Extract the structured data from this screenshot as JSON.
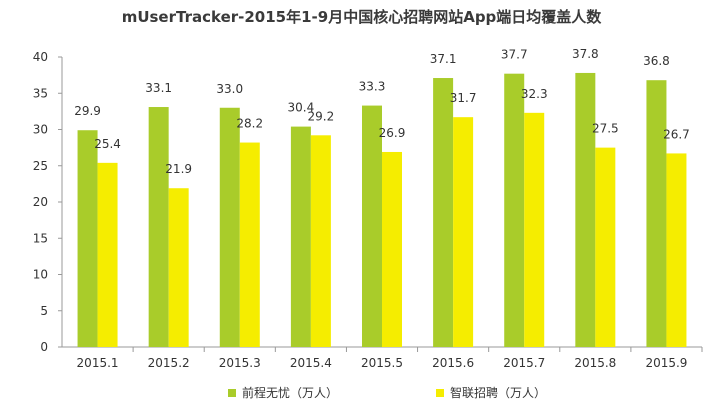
{
  "chart_data": {
    "type": "bar",
    "title": "mUserTracker-2015年1-9月中国核心招聘网站App端日均覆盖人数",
    "xlabel": "",
    "ylabel": "",
    "ylim": [
      0,
      40
    ],
    "yticks": [
      0,
      5,
      10,
      15,
      20,
      25,
      30,
      35,
      40
    ],
    "grid": false,
    "legend_position": "bottom",
    "categories": [
      "2015.1",
      "2015.2",
      "2015.3",
      "2015.4",
      "2015.5",
      "2015.6",
      "2015.7",
      "2015.8",
      "2015.9"
    ],
    "series": [
      {
        "name": "前程无忧（万人）",
        "color": "#a9cc2a",
        "values": [
          29.9,
          33.1,
          33.0,
          30.4,
          33.3,
          37.1,
          37.7,
          37.8,
          36.8
        ],
        "labels": [
          "29.9",
          "33.1",
          "33.0",
          "30.4",
          "33.3",
          "37.1",
          "37.7",
          "37.8",
          "36.8"
        ]
      },
      {
        "name": "智联招聘（万人）",
        "color": "#f5ed00",
        "values": [
          25.4,
          21.9,
          28.2,
          29.2,
          26.9,
          31.7,
          32.3,
          27.5,
          26.7
        ],
        "labels": [
          "25.4",
          "21.9",
          "28.2",
          "29.2",
          "26.9",
          "31.7",
          "32.3",
          "27.5",
          "26.7"
        ]
      }
    ]
  }
}
